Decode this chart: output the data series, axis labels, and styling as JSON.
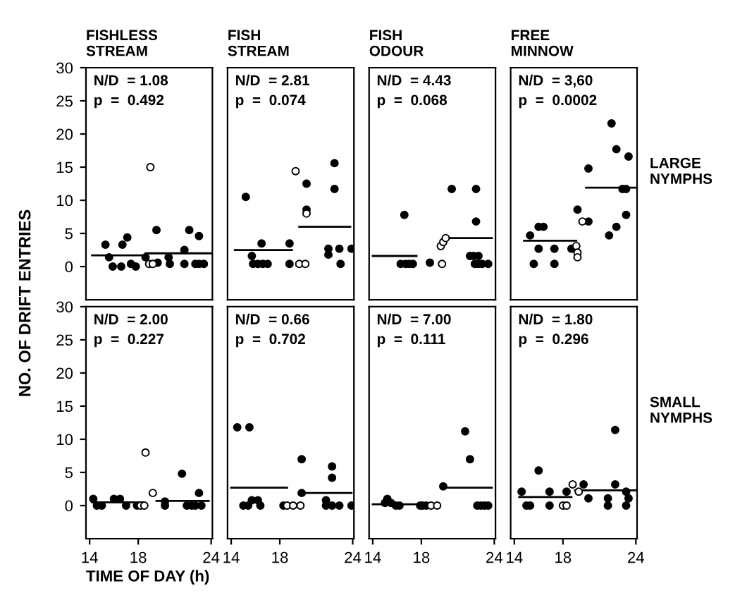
{
  "chart_data": [
    {
      "type": "scatter",
      "title": "FISHLESS\nSTREAM",
      "ylabel": "NO. OF DRIFT ENTRIES",
      "annotations": [
        "N/D  = 1.08",
        "p  =  0.492"
      ],
      "xlim": [
        13.7,
        24.1
      ],
      "ylim": [
        -5,
        30
      ],
      "xticks": [
        14,
        18,
        24
      ],
      "yticks": [
        0,
        5,
        10,
        15,
        20,
        25,
        30
      ],
      "tick_labels": "y",
      "series": [
        {
          "marker": "circle",
          "color": "#000000",
          "x": [
            15.3,
            15.6,
            15.9,
            16.6,
            16.7,
            17.1,
            17.4,
            17.8,
            18.6,
            19.5,
            19.6,
            20.5,
            20.6,
            21.8,
            22.2,
            21.8,
            22.7,
            23.0,
            23.0,
            23.4
          ],
          "values": [
            3.3,
            1.4,
            0,
            0,
            3.3,
            4.4,
            0.4,
            0,
            1.4,
            5.5,
            0.6,
            1.4,
            0.4,
            2.5,
            5.5,
            0.4,
            0.4,
            4.6,
            0.4,
            0.4
          ]
        },
        {
          "marker": "circle",
          "color": "#ffffff",
          "x": [
            19.0,
            18.9,
            19.2
          ],
          "values": [
            15,
            0.4,
            0.4
          ]
        },
        {
          "type": "line",
          "line_style": "solid",
          "color": "#000000",
          "x": [
            14.2,
            18.6
          ],
          "values": [
            1.7,
            1.7
          ]
        },
        {
          "type": "line",
          "line_style": "solid",
          "color": "#000000",
          "x": [
            18.6,
            24.0
          ],
          "values": [
            2.0,
            2.0
          ]
        }
      ]
    },
    {
      "type": "scatter",
      "title": "FISH\nSTREAM",
      "annotations": [
        "N/D  = 2.81",
        "p  =  0.074"
      ],
      "xlim": [
        13.7,
        24.1
      ],
      "ylim": [
        -5,
        30
      ],
      "xticks": [
        14,
        18,
        24
      ],
      "yticks": [
        0,
        5,
        10,
        15,
        20,
        25,
        30
      ],
      "tick_labels": false,
      "series": [
        {
          "marker": "circle",
          "color": "#000000",
          "x": [
            15.2,
            15.7,
            15.8,
            16.2,
            16.6,
            17.0,
            16.5,
            18.8,
            18.8,
            20.2,
            20.2,
            22.5,
            22.5,
            22.0,
            22.0,
            22.9,
            23.0,
            23.9
          ],
          "values": [
            10.5,
            1.6,
            0.4,
            0.4,
            0.4,
            0.4,
            3.5,
            3.5,
            0.4,
            12.5,
            8.6,
            15.6,
            11.7,
            2.7,
            1.8,
            2.7,
            0.4,
            2.7
          ]
        },
        {
          "marker": "circle",
          "color": "#ffffff",
          "x": [
            19.6,
            20.1,
            19.3,
            20.2
          ],
          "values": [
            0.4,
            0.4,
            14.4,
            8.0
          ]
        },
        {
          "type": "line",
          "line_style": "solid",
          "color": "#000000",
          "x": [
            14.3,
            19.0
          ],
          "values": [
            2.5,
            2.5
          ]
        },
        {
          "type": "line",
          "line_style": "solid",
          "color": "#000000",
          "x": [
            19.6,
            23.8
          ],
          "values": [
            6.0,
            6.0
          ]
        }
      ]
    },
    {
      "type": "scatter",
      "title": "FISH\nODOUR",
      "annotations": [
        "N/D  = 4.43",
        "p  =  0.068"
      ],
      "xlim": [
        13.7,
        24.1
      ],
      "ylim": [
        -5,
        30
      ],
      "xticks": [
        14,
        18,
        24
      ],
      "yticks": [
        0,
        5,
        10,
        15,
        20,
        25,
        30
      ],
      "tick_labels": false,
      "series": [
        {
          "marker": "circle",
          "color": "#000000",
          "x": [
            16.6,
            16.3,
            16.7,
            17.0,
            17.3,
            18.7,
            20.5,
            22.5,
            22.5,
            22.0,
            22.3,
            22.7,
            22.4,
            22.7,
            23.0,
            23.5
          ],
          "values": [
            7.8,
            0.4,
            0.4,
            0.4,
            0.4,
            0.6,
            11.7,
            11.7,
            6.8,
            1.6,
            1.6,
            1.6,
            0.4,
            0.4,
            0.4,
            0.4
          ]
        },
        {
          "marker": "circle",
          "color": "#ffffff",
          "x": [
            19.7,
            19.6,
            19.8,
            20.0
          ],
          "values": [
            0.4,
            3.1,
            3.7,
            4.3
          ]
        },
        {
          "type": "line",
          "line_style": "solid",
          "color": "#000000",
          "x": [
            14.0,
            17.6
          ],
          "values": [
            1.6,
            1.6
          ]
        },
        {
          "type": "line",
          "line_style": "solid",
          "color": "#000000",
          "x": [
            19.8,
            23.8
          ],
          "values": [
            4.3,
            4.3
          ]
        }
      ]
    },
    {
      "type": "scatter",
      "title": "FREE\nMINNOW",
      "annotations": [
        "N/D  = 3,60",
        "p  =  0.0002",
        "LARGE\nNYMPHS"
      ],
      "xlim": [
        13.7,
        24.1
      ],
      "ylim": [
        -5,
        30
      ],
      "xticks": [
        14,
        18,
        24
      ],
      "yticks": [
        0,
        5,
        10,
        15,
        20,
        25,
        30
      ],
      "tick_labels": false,
      "series": [
        {
          "marker": "circle",
          "color": "#000000",
          "x": [
            15.3,
            16.0,
            16.4,
            16.0,
            17.3,
            15.6,
            17.3,
            18.7,
            19.2,
            20.1,
            20.1,
            22.0,
            22.4,
            23.4,
            22.9,
            23.2,
            23.2,
            22.4,
            21.8
          ],
          "values": [
            4.7,
            6.0,
            6.0,
            2.7,
            2.7,
            0.4,
            0.4,
            2.7,
            8.6,
            14.8,
            6.8,
            21.6,
            17.7,
            16.6,
            11.7,
            11.7,
            7.8,
            6.0,
            4.7
          ]
        },
        {
          "marker": "circle",
          "color": "#ffffff",
          "x": [
            19.1,
            19.2,
            19.2,
            19.6
          ],
          "values": [
            3.1,
            2.1,
            1.4,
            6.8
          ]
        },
        {
          "type": "line",
          "line_style": "solid",
          "color": "#000000",
          "x": [
            14.8,
            19.1
          ],
          "values": [
            3.9,
            3.9
          ]
        },
        {
          "type": "line",
          "line_style": "solid",
          "color": "#000000",
          "x": [
            19.9,
            24.0
          ],
          "values": [
            11.9,
            11.9
          ]
        }
      ]
    },
    {
      "type": "scatter",
      "xlabel": "TIME OF DAY (h)",
      "annotations": [
        "N/D  = 2.00",
        "p  =  0.227"
      ],
      "xlim": [
        13.7,
        24.1
      ],
      "ylim": [
        -5,
        30
      ],
      "xticks": [
        14,
        18,
        24
      ],
      "yticks": [
        0,
        5,
        10,
        15,
        20,
        25,
        30
      ],
      "series": [
        {
          "marker": "circle",
          "color": "#000000",
          "x": [
            14.3,
            14.6,
            15.0,
            16.0,
            16.5,
            17.0,
            17.9,
            20.2,
            20.2,
            21.6,
            22.0,
            22.4,
            22.7,
            23.0,
            23.2
          ],
          "values": [
            1,
            0,
            0,
            1,
            1,
            0,
            0,
            0.6,
            0,
            4.8,
            0,
            0,
            0,
            1.9,
            0
          ]
        },
        {
          "marker": "circle",
          "color": "#ffffff",
          "x": [
            18.2,
            18.5,
            18.6,
            19.2
          ],
          "values": [
            0,
            0,
            8.0,
            1.9
          ]
        },
        {
          "type": "line",
          "line_style": "solid",
          "color": "#000000",
          "x": [
            14.2,
            18.4
          ],
          "values": [
            0.5,
            0.5
          ]
        },
        {
          "type": "line",
          "line_style": "solid",
          "color": "#000000",
          "x": [
            19.5,
            23.8
          ],
          "values": [
            0.7,
            0.7
          ]
        }
      ]
    },
    {
      "type": "scatter",
      "annotations": [
        "N/D  = 0.66",
        "p  =  0.702"
      ],
      "xlim": [
        13.7,
        24.1
      ],
      "ylim": [
        -5,
        30
      ],
      "xticks": [
        14,
        18,
        24
      ],
      "yticks": [
        0,
        5,
        10,
        15,
        20,
        25,
        30
      ],
      "tick_labels": "x",
      "series": [
        {
          "marker": "circle",
          "color": "#000000",
          "x": [
            14.5,
            15.5,
            15.0,
            15.4,
            15.7,
            16.2,
            16.4,
            18.3,
            19.8,
            19.8,
            21.8,
            21.8,
            22.3,
            22.3,
            22.3,
            22.9,
            23.9
          ],
          "values": [
            11.8,
            11.8,
            0,
            0,
            0.8,
            0.8,
            0,
            0,
            7.0,
            1.9,
            0,
            0.8,
            0,
            5.9,
            4.2,
            0,
            0
          ]
        },
        {
          "marker": "circle",
          "color": "#ffffff",
          "x": [
            18.6,
            19.1,
            19.7
          ],
          "values": [
            0,
            0,
            0
          ]
        },
        {
          "type": "line",
          "line_style": "solid",
          "color": "#000000",
          "x": [
            14.0,
            18.6
          ],
          "values": [
            2.7,
            2.7
          ]
        },
        {
          "type": "line",
          "line_style": "solid",
          "color": "#000000",
          "x": [
            19.7,
            23.9
          ],
          "values": [
            1.9,
            1.9
          ]
        }
      ]
    },
    {
      "type": "scatter",
      "annotations": [
        "N/D  = 7.00",
        "p  =  0.111"
      ],
      "xlim": [
        13.7,
        24.1
      ],
      "ylim": [
        -5,
        30
      ],
      "xticks": [
        14,
        18,
        24
      ],
      "yticks": [
        0,
        5,
        10,
        15,
        20,
        25,
        30
      ],
      "tick_labels": "x",
      "series": [
        {
          "marker": "circle",
          "color": "#000000",
          "x": [
            15.0,
            15.2,
            15.5,
            15.9,
            16.2,
            17.9,
            18.1,
            18.4,
            19.8,
            21.6,
            22.0,
            22.6,
            22.9,
            23.2,
            23.5
          ],
          "values": [
            0.4,
            1.0,
            0.4,
            0,
            0,
            0,
            0,
            0,
            2.9,
            11.2,
            7.0,
            0,
            0,
            0,
            0
          ]
        },
        {
          "marker": "circle",
          "color": "#ffffff",
          "x": [
            18.8,
            19.3
          ],
          "values": [
            0,
            0
          ]
        },
        {
          "type": "line",
          "line_style": "solid",
          "color": "#000000",
          "x": [
            14.0,
            17.9
          ],
          "values": [
            0.2,
            0.2
          ]
        },
        {
          "type": "line",
          "line_style": "solid",
          "color": "#000000",
          "x": [
            19.8,
            23.8
          ],
          "values": [
            2.7,
            2.7
          ]
        }
      ]
    },
    {
      "type": "scatter",
      "annotations": [
        "N/D  = 1.80",
        "p  =  0.296",
        "SMALL\nNYMPHS"
      ],
      "xlim": [
        13.7,
        24.1
      ],
      "ylim": [
        -5,
        30
      ],
      "xticks": [
        14,
        18,
        24
      ],
      "yticks": [
        0,
        5,
        10,
        15,
        20,
        25,
        30
      ],
      "tick_labels": "x",
      "series": [
        {
          "marker": "circle",
          "color": "#000000",
          "x": [
            14.6,
            15.0,
            15.3,
            16.0,
            16.9,
            16.9,
            18.3,
            19.7,
            20.1,
            21.7,
            21.7,
            22.3,
            22.3,
            23.2,
            23.4,
            23.2
          ],
          "values": [
            2.1,
            0,
            0,
            5.3,
            2.1,
            0,
            2.1,
            3.2,
            1.1,
            1.1,
            0,
            11.4,
            3.2,
            2.1,
            1.1,
            0
          ]
        },
        {
          "marker": "circle",
          "color": "#ffffff",
          "x": [
            18.0,
            18.3,
            18.8,
            19.3
          ],
          "values": [
            0,
            0,
            3.2,
            2.1
          ]
        },
        {
          "type": "line",
          "line_style": "solid",
          "color": "#000000",
          "x": [
            14.4,
            18.7
          ],
          "values": [
            1.3,
            1.3
          ]
        },
        {
          "type": "line",
          "line_style": "solid",
          "color": "#000000",
          "x": [
            19.0,
            24.0
          ],
          "values": [
            2.3,
            2.3
          ]
        }
      ]
    }
  ]
}
